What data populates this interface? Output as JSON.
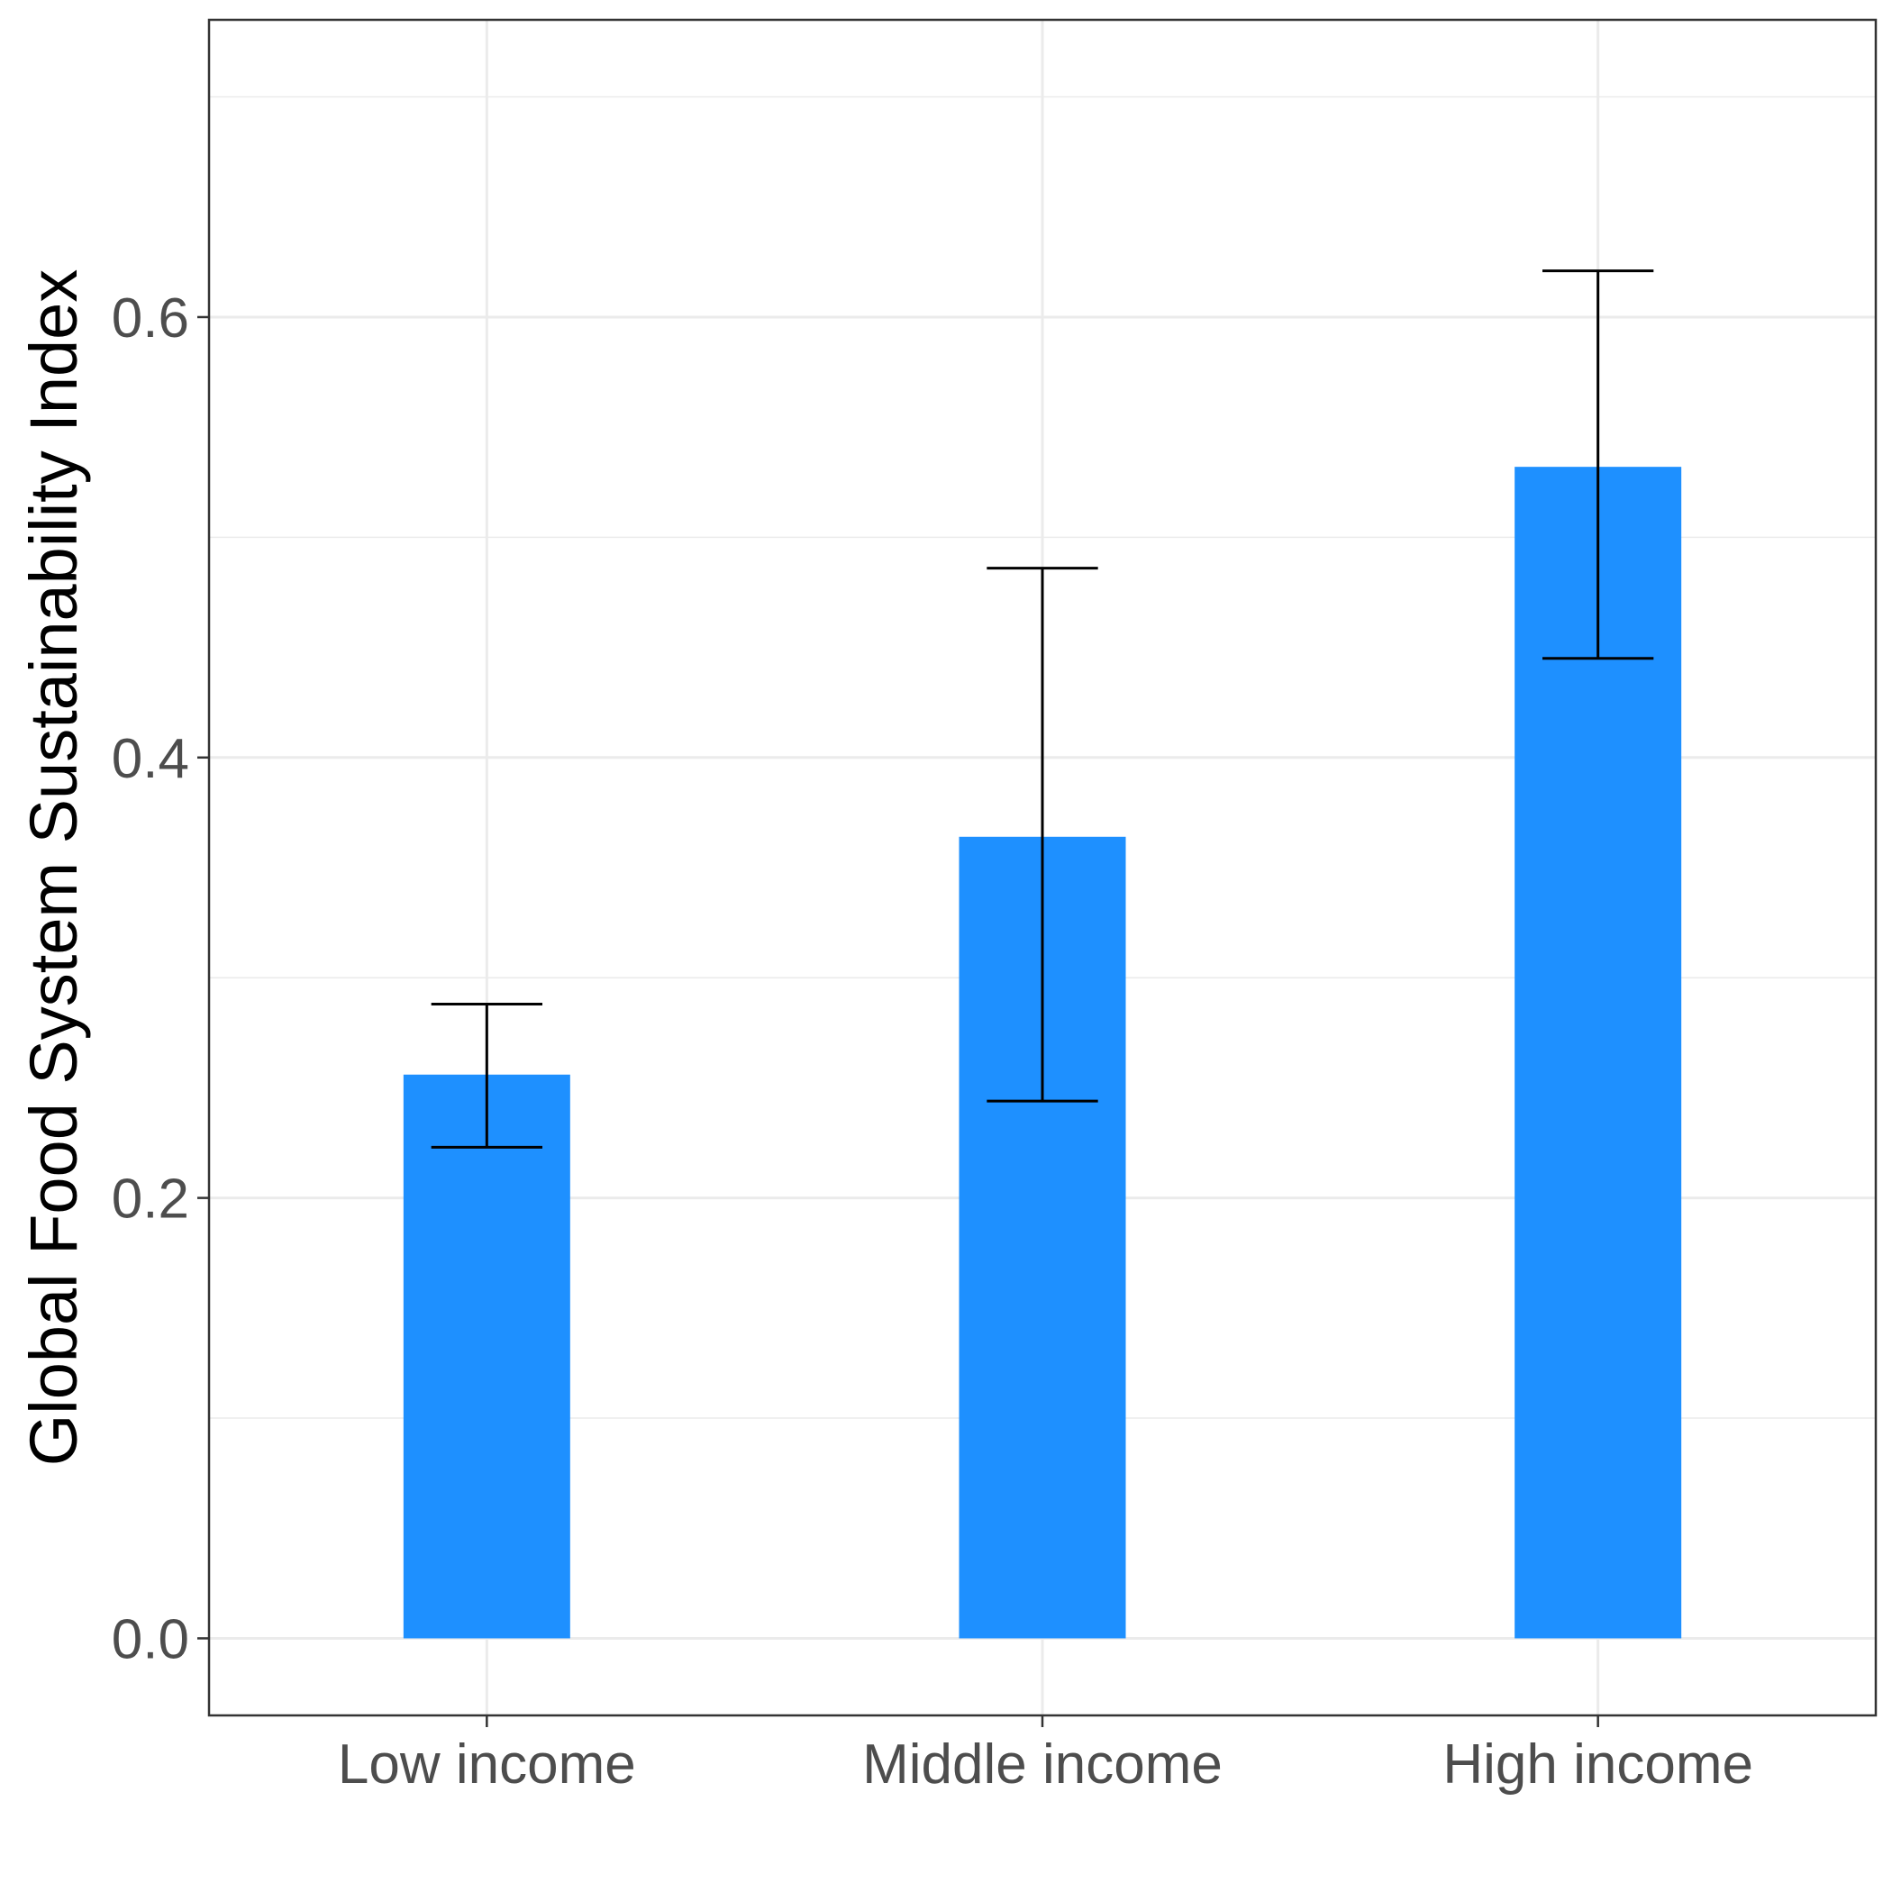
{
  "chart_data": {
    "type": "bar",
    "title": "",
    "xlabel": "",
    "ylabel": "Global Food System Sustainability Index",
    "categories": [
      "Low income",
      "Middle income",
      "High income"
    ],
    "values": [
      0.256,
      0.364,
      0.532
    ],
    "error_low": [
      0.223,
      0.244,
      0.445
    ],
    "error_high": [
      0.288,
      0.486,
      0.621
    ],
    "ylim": [
      -0.035,
      0.735
    ],
    "yticks": [
      0.0,
      0.2,
      0.4,
      0.6
    ],
    "ytick_labels": [
      "0.0",
      "0.2",
      "0.4",
      "0.6"
    ],
    "grid": true,
    "legend": "none",
    "colors": {
      "bar": "#1E90FF",
      "error_bar": "#000000",
      "grid": "#EBEBEB",
      "panel_border": "#333333"
    }
  }
}
